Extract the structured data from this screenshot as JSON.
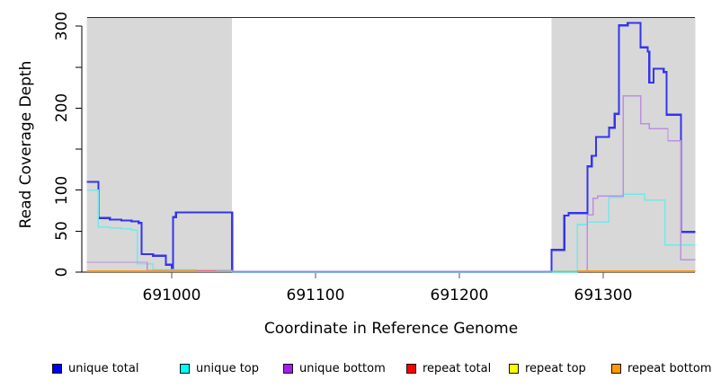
{
  "chart_data": {
    "type": "line",
    "subtype": "step-coverage-plot",
    "title": "",
    "xlabel": "Coordinate in Reference Genome",
    "ylabel": "Read Coverage Depth",
    "xlim": [
      690941,
      691364
    ],
    "ylim": [
      0,
      311
    ],
    "x_ticks": [
      691000,
      691100,
      691200,
      691300
    ],
    "y_ticks_all": [
      0,
      50,
      100,
      150,
      200,
      250,
      300
    ],
    "y_ticks_labeled": [
      0,
      50,
      100,
      200,
      300
    ],
    "grid": false,
    "panel_background": "#ffffff",
    "shaded_region_color": "#d8d8d8",
    "shaded_regions": [
      [
        690941,
        691042
      ],
      [
        691264,
        691364
      ]
    ],
    "legend_position": "bottom",
    "legend": [
      {
        "label": "unique total",
        "color": "#0000ee"
      },
      {
        "label": "unique top",
        "color": "#00ffff"
      },
      {
        "label": "unique bottom",
        "color": "#a020f0"
      },
      {
        "label": "repeat total",
        "color": "#ff0000"
      },
      {
        "label": "repeat top",
        "color": "#ffff00"
      },
      {
        "label": "repeat bottom",
        "color": "#ff9900"
      }
    ],
    "series": [
      {
        "name": "unique total",
        "color": "#3434ee",
        "width": 2.2,
        "end": 691364,
        "points": [
          [
            690941,
            110
          ],
          [
            690949,
            66
          ],
          [
            690957,
            64
          ],
          [
            690965,
            63
          ],
          [
            690972,
            62
          ],
          [
            690977,
            60
          ],
          [
            690979,
            22
          ],
          [
            690987,
            20
          ],
          [
            690996,
            9
          ],
          [
            691000,
            5
          ],
          [
            691001,
            67
          ],
          [
            691003,
            73
          ],
          [
            691042,
            0
          ],
          [
            691264,
            27
          ],
          [
            691273,
            69
          ],
          [
            691276,
            72
          ],
          [
            691289,
            129
          ],
          [
            691292,
            142
          ],
          [
            691295,
            165
          ],
          [
            691304,
            176
          ],
          [
            691308,
            193
          ],
          [
            691311,
            301
          ],
          [
            691317,
            304
          ],
          [
            691326,
            274
          ],
          [
            691331,
            269
          ],
          [
            691332,
            231
          ],
          [
            691335,
            248
          ],
          [
            691342,
            244
          ],
          [
            691344,
            192
          ],
          [
            691354,
            49
          ]
        ]
      },
      {
        "name": "unique top",
        "color": "#74e9e9",
        "width": 1.6,
        "end": 691364,
        "points": [
          [
            690941,
            100
          ],
          [
            690949,
            55
          ],
          [
            690957,
            54
          ],
          [
            690965,
            53
          ],
          [
            690972,
            51
          ],
          [
            690976,
            10
          ],
          [
            690987,
            3
          ],
          [
            691017,
            1
          ],
          [
            691042,
            0
          ],
          [
            691282,
            58
          ],
          [
            691289,
            61
          ],
          [
            691304,
            91
          ],
          [
            691314,
            95
          ],
          [
            691329,
            88
          ],
          [
            691343,
            33
          ]
        ]
      },
      {
        "name": "unique bottom",
        "color": "#bb8fe0",
        "width": 1.4,
        "end": 691364,
        "points": [
          [
            690941,
            12
          ],
          [
            690983,
            2
          ],
          [
            691042,
            0
          ],
          [
            691264,
            1
          ],
          [
            691289,
            70
          ],
          [
            691293,
            90
          ],
          [
            691296,
            93
          ],
          [
            691314,
            215
          ],
          [
            691326,
            181
          ],
          [
            691332,
            175
          ],
          [
            691345,
            160
          ],
          [
            691354,
            15
          ]
        ]
      },
      {
        "name": "repeat total",
        "color": "#e87070",
        "width": 1.5,
        "end": 691031,
        "points": [
          [
            691014,
            1.5
          ]
        ]
      },
      {
        "name": "baseline-green-left",
        "color": "#7dc87d",
        "width": 1.5,
        "end": 691042,
        "points": [
          [
            691031,
            1
          ]
        ]
      },
      {
        "name": "baseline-green-right",
        "color": "#7dc87d",
        "width": 1.5,
        "end": 691282,
        "points": [
          [
            691264,
            1
          ]
        ]
      },
      {
        "name": "gap-baseline",
        "color": "#9184f0",
        "width": 2,
        "end": 691264,
        "points": [
          [
            691042,
            0.6
          ]
        ]
      },
      {
        "name": "repeat bottom",
        "color": "#ff9512",
        "width": 2,
        "end": 691017,
        "points": [
          [
            690941,
            1
          ]
        ]
      },
      {
        "name": "repeat bottom segment 2",
        "color": "#ff9512",
        "width": 2,
        "end": 691364,
        "points": [
          [
            691282,
            1
          ]
        ]
      }
    ]
  },
  "layout_labels": {
    "x_axis_title": "Coordinate in Reference Genome",
    "y_axis_title": "Read Coverage Depth"
  }
}
